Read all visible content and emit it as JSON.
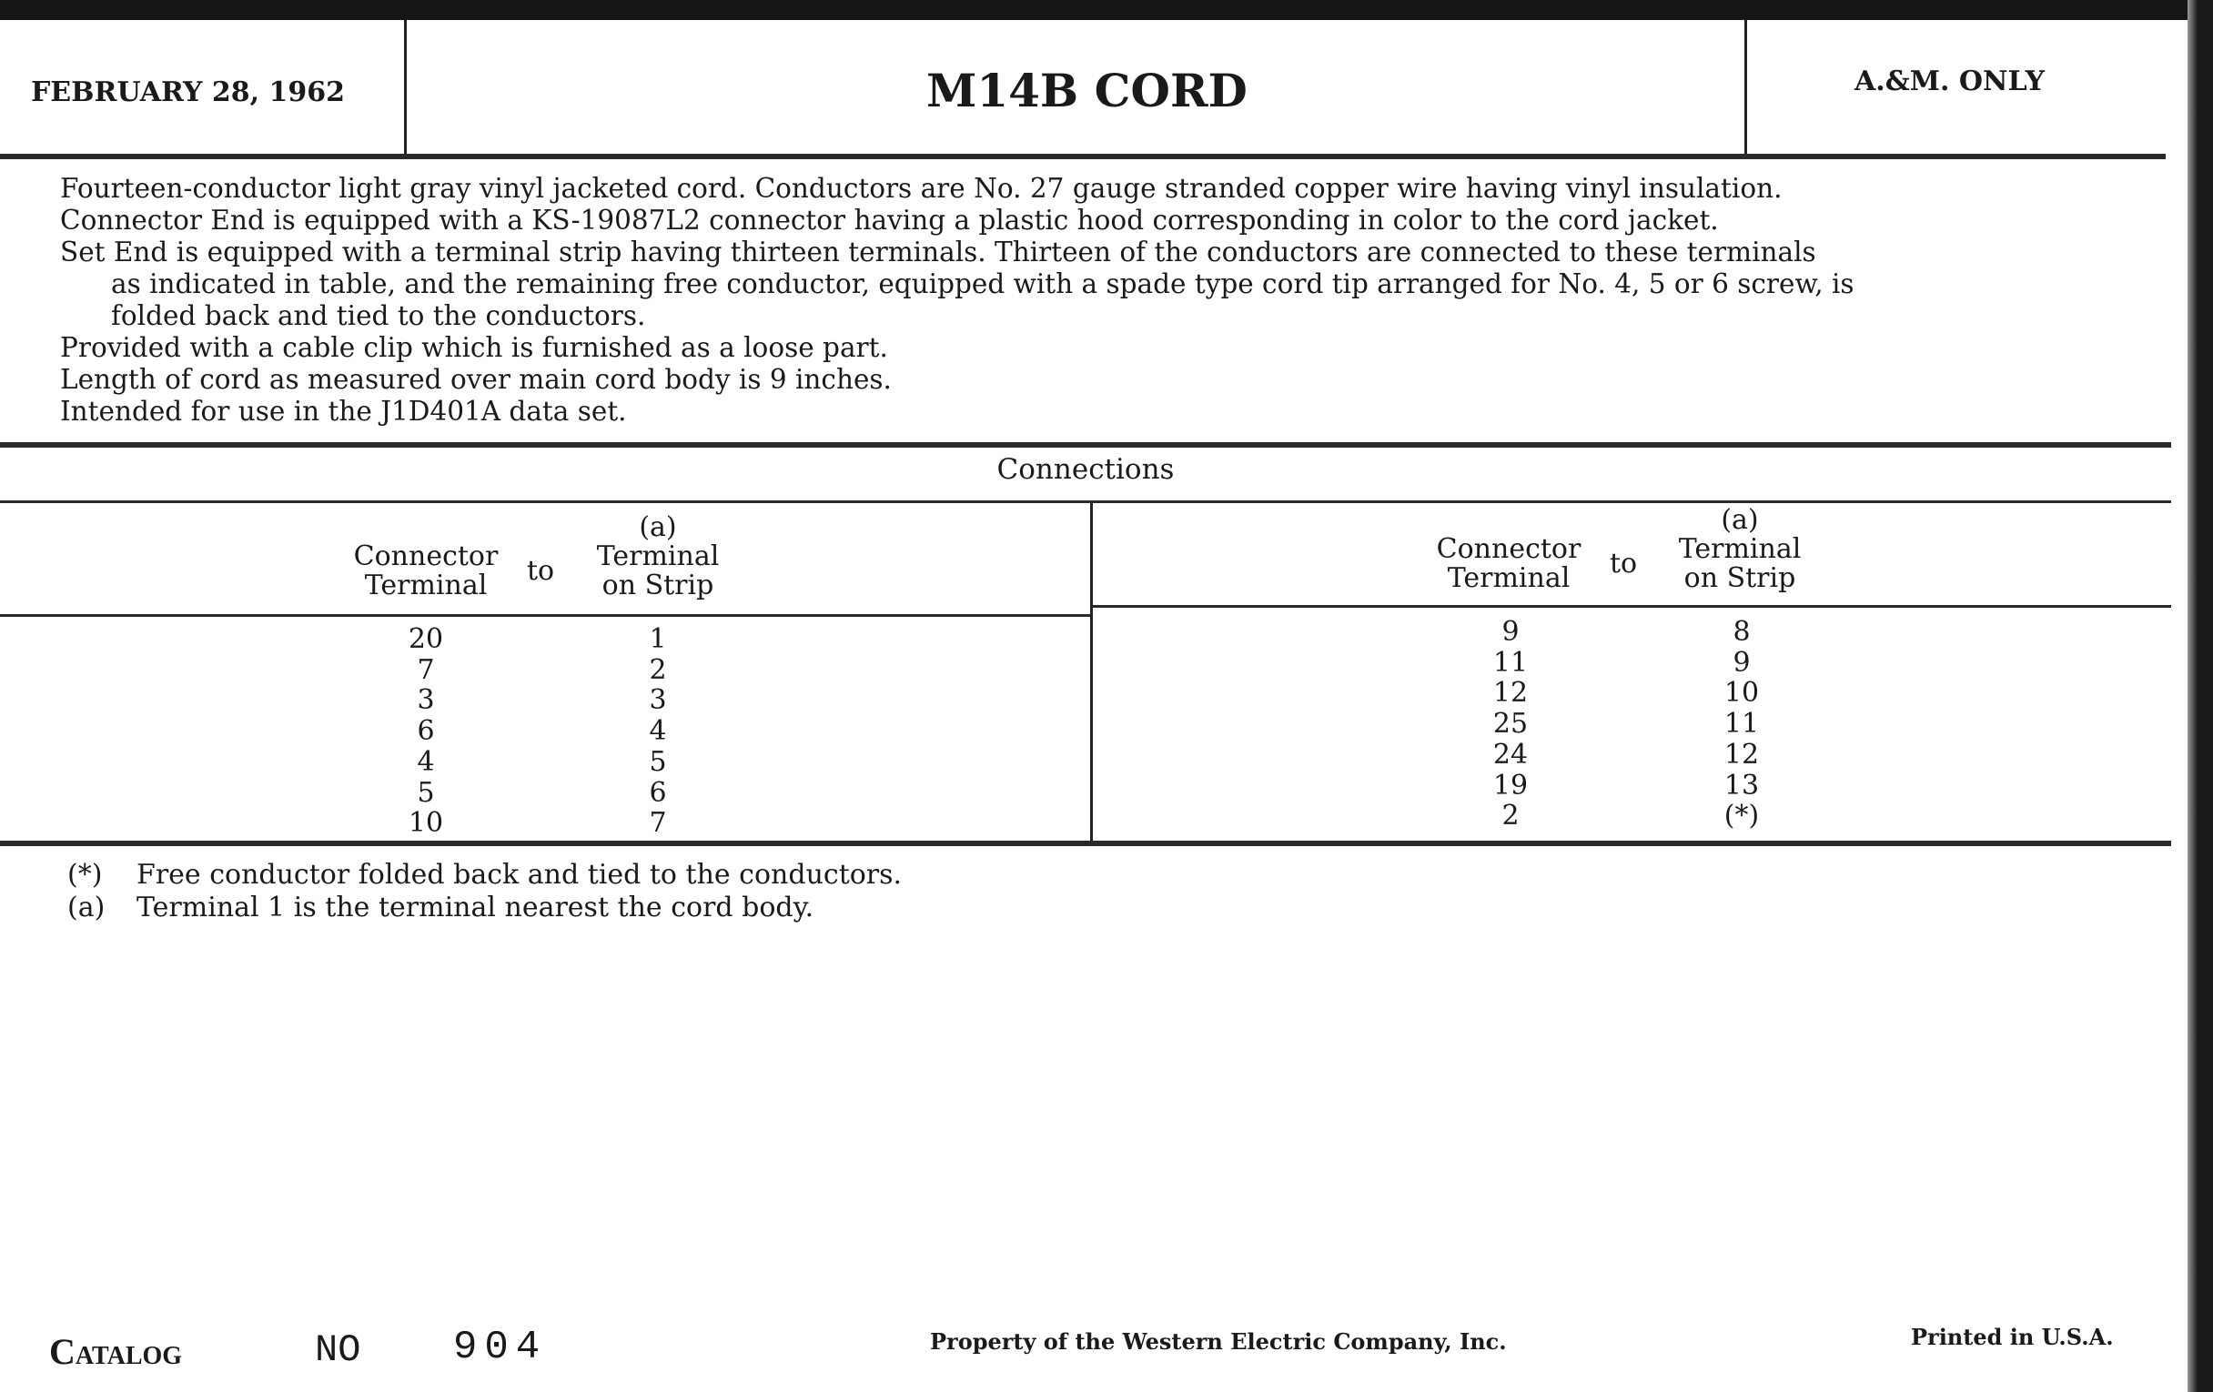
{
  "header": {
    "date": "FEBRUARY 28, 1962",
    "title": "M14B CORD",
    "restriction": "A.&M. ONLY"
  },
  "description": [
    "Fourteen-conductor light gray vinyl jacketed cord.  Conductors are No. 27 gauge stranded copper wire having vinyl insulation.",
    "Connector End is equipped with a KS-19087L2 connector having a plastic hood corresponding in color to the cord jacket.",
    "Set End is equipped with a terminal strip having thirteen terminals.  Thirteen of the conductors are connected to these terminals",
    "as indicated in table, and the remaining free conductor, equipped with a spade type cord tip arranged for No. 4, 5 or 6 screw, is",
    "folded back and tied to the conductors.",
    "Provided with a cable clip which is furnished as a loose part.",
    "Length of cord as measured over main cord body is 9 inches.",
    "Intended for use in the J1D401A data set."
  ],
  "connections": {
    "title": "Connections",
    "headers": {
      "connector_1": "Connector",
      "connector_2": "Terminal",
      "to": "to",
      "note": "(a)",
      "terminal_1": "Terminal",
      "terminal_2": "on Strip"
    },
    "left": [
      [
        "20",
        "1"
      ],
      [
        "7",
        "2"
      ],
      [
        "3",
        "3"
      ],
      [
        "6",
        "4"
      ],
      [
        "4",
        "5"
      ],
      [
        "5",
        "6"
      ],
      [
        "10",
        "7"
      ]
    ],
    "right": [
      [
        "9",
        "8"
      ],
      [
        "11",
        "9"
      ],
      [
        "12",
        "10"
      ],
      [
        "25",
        "11"
      ],
      [
        "24",
        "12"
      ],
      [
        "19",
        "13"
      ],
      [
        "2",
        "(*)"
      ]
    ]
  },
  "footnotes": [
    {
      "mark": "(*)",
      "text": "Free conductor folded back and tied to the conductors."
    },
    {
      "mark": "(a)",
      "text": "Terminal 1 is the terminal nearest the cord body."
    }
  ],
  "footer": {
    "catalog_label": "Catalog",
    "no_label": "NO",
    "catalog_number": "904",
    "property": "Property of the Western Electric Company, Inc.",
    "printed": "Printed in U.S.A."
  }
}
